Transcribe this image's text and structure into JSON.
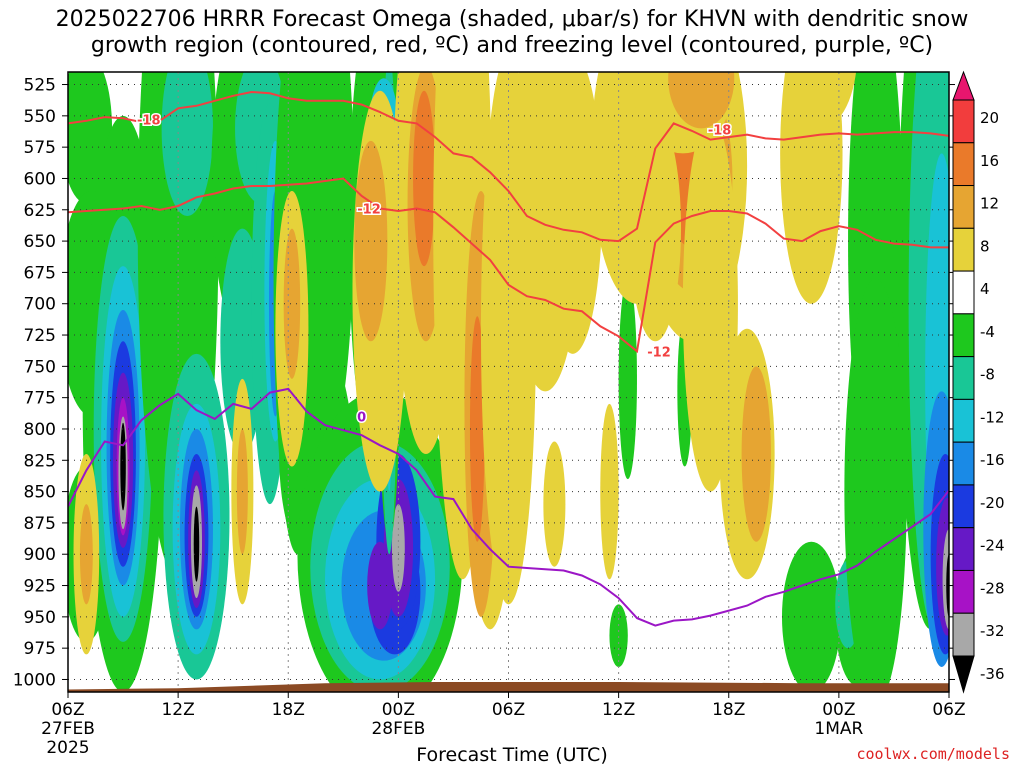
{
  "title_line1": "2025022706 HRRR Forecast Omega (shaded, μbar/s) for KHVN with dendritic snow",
  "title_line2": "growth region (contoured, red, ºC) and freezing level (contoured, purple, ºC)",
  "xlabel": "Forecast Time (UTC)",
  "credit": "coolwx.com/models",
  "colors": {
    "red_contour": "#f24040",
    "purple_contour": "#9b16c6",
    "ground": "#8b4a24",
    "grid": "#333333"
  },
  "chart_data": {
    "type": "heatmap",
    "y_axis": {
      "label": "",
      "unit": "hPa",
      "inverted": true,
      "ticks": [
        525,
        550,
        575,
        600,
        625,
        650,
        675,
        700,
        725,
        750,
        775,
        800,
        825,
        850,
        875,
        900,
        925,
        950,
        975,
        1000
      ],
      "range": [
        1010,
        515
      ]
    },
    "x_axis": {
      "range_hours": [
        0,
        48
      ],
      "ticks": [
        {
          "hour": 0,
          "label": "06Z",
          "sub": "27FEB",
          "sub2": "2025"
        },
        {
          "hour": 6,
          "label": "12Z",
          "sub": "",
          "sub2": ""
        },
        {
          "hour": 12,
          "label": "18Z",
          "sub": "",
          "sub2": ""
        },
        {
          "hour": 18,
          "label": "00Z",
          "sub": "28FEB",
          "sub2": ""
        },
        {
          "hour": 24,
          "label": "06Z",
          "sub": "",
          "sub2": ""
        },
        {
          "hour": 30,
          "label": "12Z",
          "sub": "",
          "sub2": ""
        },
        {
          "hour": 36,
          "label": "18Z",
          "sub": "",
          "sub2": ""
        },
        {
          "hour": 42,
          "label": "00Z",
          "sub": "1MAR",
          "sub2": ""
        },
        {
          "hour": 48,
          "label": "06Z",
          "sub": "",
          "sub2": ""
        }
      ]
    },
    "colorbar": {
      "levels": [
        -36,
        -32,
        -28,
        -24,
        -20,
        -16,
        -12,
        -8,
        -4,
        4,
        8,
        12,
        16,
        20
      ],
      "labels": [
        "20",
        "16",
        "12",
        "8",
        "4",
        "-4",
        "-8",
        "-12",
        "-16",
        "-20",
        "-24",
        "-28",
        "-32",
        "-36"
      ],
      "colors": [
        {
          "range": ">20",
          "color": "#e8166e"
        },
        {
          "range": "16-20",
          "color": "#f23d3d"
        },
        {
          "range": "12-16",
          "color": "#ea7a2a"
        },
        {
          "range": "8-12",
          "color": "#e6a532"
        },
        {
          "range": "4-8",
          "color": "#e6d23a"
        },
        {
          "range": "-4-4",
          "color": "#ffffff"
        },
        {
          "range": "-8--4",
          "color": "#1ec81e"
        },
        {
          "range": "-12--8",
          "color": "#19c796"
        },
        {
          "range": "-16--12",
          "color": "#19c2d6"
        },
        {
          "range": "-20--16",
          "color": "#1a8ae6"
        },
        {
          "range": "-24--20",
          "color": "#1b3ae0"
        },
        {
          "range": "-28--24",
          "color": "#6619c6"
        },
        {
          "range": "-32--28",
          "color": "#a712c6"
        },
        {
          "range": "-36--32",
          "color": "#a8a8a8"
        },
        {
          "range": "<-36",
          "color": "#000000"
        }
      ]
    },
    "series": [
      {
        "name": "-18",
        "color": "#f24040",
        "x": [
          0,
          1,
          2,
          3,
          4,
          5,
          6,
          7,
          8,
          9,
          10,
          11,
          12,
          13,
          14,
          15,
          16,
          17,
          18,
          19,
          20,
          21,
          22,
          23,
          24,
          25,
          26,
          27,
          28,
          29,
          30,
          31,
          32,
          33,
          34,
          35,
          36,
          37,
          38,
          39,
          40,
          41,
          42,
          43,
          44,
          45,
          46,
          47,
          48
        ],
        "y": [
          556,
          554,
          551,
          552,
          555,
          554,
          544,
          542,
          538,
          534,
          531,
          532,
          536,
          538,
          538,
          538,
          541,
          547,
          554,
          556,
          567,
          580,
          583,
          595,
          610,
          630,
          637,
          641,
          643,
          649,
          650,
          640,
          576,
          556,
          562,
          569,
          567,
          565,
          568,
          569,
          567,
          565,
          564,
          565,
          564,
          563,
          563,
          564,
          566
        ]
      },
      {
        "name": "-12",
        "color": "#f24040",
        "x": [
          0,
          1,
          2,
          3,
          4,
          5,
          6,
          7,
          8,
          9,
          10,
          11,
          12,
          13,
          14,
          15,
          16,
          17,
          18,
          19,
          20,
          21,
          22,
          23,
          24,
          25,
          26,
          27,
          28,
          29,
          30,
          31,
          32,
          33,
          34,
          35,
          36,
          37,
          38,
          39,
          40,
          41,
          42,
          43,
          44,
          45,
          46,
          47,
          48
        ],
        "y": [
          627,
          626,
          625,
          624,
          622,
          625,
          622,
          615,
          612,
          608,
          606,
          606,
          605,
          604,
          602,
          600,
          614,
          624,
          626,
          624,
          627,
          639,
          652,
          665,
          685,
          694,
          697,
          704,
          706,
          718,
          726,
          738,
          651,
          636,
          630,
          626,
          626,
          628,
          636,
          648,
          650,
          642,
          638,
          641,
          649,
          652,
          653,
          655,
          655
        ]
      },
      {
        "name": "0",
        "color": "#9b16c6",
        "x": [
          0,
          1,
          2,
          3,
          4,
          5,
          6,
          7,
          8,
          9,
          10,
          11,
          12,
          13,
          14,
          15,
          16,
          17,
          18,
          19,
          20,
          21,
          22,
          23,
          24,
          25,
          26,
          27,
          28,
          29,
          30,
          31,
          32,
          33,
          34,
          35,
          36,
          37,
          38,
          39,
          40,
          41,
          42,
          43,
          44,
          45,
          46,
          47,
          48
        ],
        "y": [
          862,
          833,
          810,
          813,
          793,
          781,
          772,
          785,
          792,
          780,
          784,
          771,
          768,
          786,
          797,
          801,
          805,
          813,
          820,
          833,
          854,
          856,
          880,
          896,
          910,
          911,
          912,
          913,
          917,
          924,
          935,
          951,
          957,
          953,
          952,
          949,
          945,
          941,
          934,
          930,
          925,
          920,
          916,
          909,
          898,
          888,
          878,
          868,
          849
        ]
      }
    ],
    "contour_labels": [
      {
        "text": "-18",
        "x": 4.4,
        "y": 553,
        "color": "#f24040"
      },
      {
        "text": "-18",
        "x": 35.5,
        "y": 561,
        "color": "#f24040"
      },
      {
        "text": "-12",
        "x": 16.4,
        "y": 624,
        "color": "#f24040"
      },
      {
        "text": "-12",
        "x": 32.2,
        "y": 738,
        "color": "#f24040"
      },
      {
        "text": "0",
        "x": 16.0,
        "y": 790,
        "color": "#9b16c6"
      }
    ]
  }
}
